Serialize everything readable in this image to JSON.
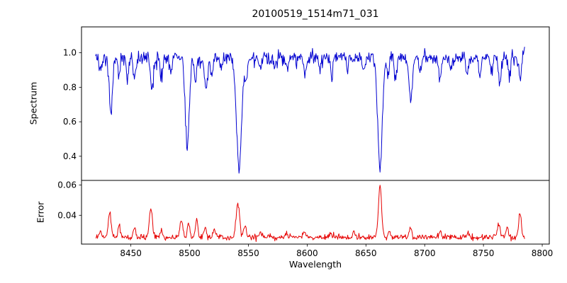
{
  "chart_data": {
    "type": "line",
    "title": "20100519_1514m71_031",
    "xlabel": "Wavelength",
    "xlim": [
      8408,
      8806
    ],
    "xticks": [
      8450,
      8500,
      8550,
      8600,
      8650,
      8700,
      8750,
      8800
    ],
    "x_range": [
      8420,
      8785
    ],
    "x_step": 0.5,
    "grid": false,
    "legend": false,
    "panels": [
      {
        "name": "spectrum",
        "ylabel": "Spectrum",
        "color": "#0000d0",
        "ylim": [
          0.26,
          1.15
        ],
        "yticks": [
          0.4,
          0.6,
          0.8,
          1.0
        ],
        "ytick_decimals": 1,
        "mode": "absorption",
        "base": 0.972,
        "noise_std": 0.021,
        "features": [
          [
            8424,
            0.07,
            1.2
          ],
          [
            8433,
            0.33,
            1.4
          ],
          [
            8440,
            0.1,
            1.0
          ],
          [
            8447,
            0.11,
            1.0
          ],
          [
            8453,
            0.13,
            1.2
          ],
          [
            8468,
            0.18,
            1.4
          ],
          [
            8476,
            0.1,
            1.0
          ],
          [
            8484,
            0.07,
            1.0
          ],
          [
            8498,
            0.51,
            1.7
          ],
          [
            8505,
            0.13,
            1.0
          ],
          [
            8514,
            0.21,
            1.2
          ],
          [
            8519,
            0.1,
            1.0
          ],
          [
            8527,
            0.07,
            1.0
          ],
          [
            8542,
            0.64,
            2.2
          ],
          [
            8548,
            0.12,
            1.0
          ],
          [
            8560,
            0.06,
            1.0
          ],
          [
            8572,
            0.07,
            1.0
          ],
          [
            8583,
            0.08,
            1.0
          ],
          [
            8598,
            0.1,
            1.1
          ],
          [
            8611,
            0.07,
            1.0
          ],
          [
            8621,
            0.1,
            1.0
          ],
          [
            8634,
            0.06,
            1.0
          ],
          [
            8648,
            0.08,
            1.0
          ],
          [
            8662,
            0.64,
            2.0
          ],
          [
            8669,
            0.1,
            1.0
          ],
          [
            8675,
            0.14,
            1.0
          ],
          [
            8688,
            0.26,
            1.4
          ],
          [
            8696,
            0.08,
            1.0
          ],
          [
            8713,
            0.12,
            1.1
          ],
          [
            8722,
            0.07,
            1.0
          ],
          [
            8736,
            0.1,
            1.0
          ],
          [
            8747,
            0.1,
            1.0
          ],
          [
            8757,
            0.08,
            1.0
          ],
          [
            8764,
            0.14,
            1.1
          ],
          [
            8772,
            0.12,
            1.0
          ],
          [
            8781,
            0.12,
            1.0
          ]
        ]
      },
      {
        "name": "error",
        "ylabel": "Error",
        "color": "#e60000",
        "ylim": [
          0.021,
          0.063
        ],
        "yticks": [
          0.04,
          0.06
        ],
        "ytick_decimals": 2,
        "mode": "emission",
        "base": 0.0255,
        "noise_std": 0.0009,
        "features": [
          [
            8424,
            0.004,
            1.0
          ],
          [
            8432,
            0.016,
            1.2
          ],
          [
            8440,
            0.008,
            1.0
          ],
          [
            8453,
            0.007,
            1.0
          ],
          [
            8467,
            0.02,
            1.2
          ],
          [
            8476,
            0.005,
            1.0
          ],
          [
            8493,
            0.011,
            1.2
          ],
          [
            8499,
            0.009,
            1.0
          ],
          [
            8506,
            0.012,
            1.0
          ],
          [
            8513,
            0.007,
            1.0
          ],
          [
            8521,
            0.005,
            1.0
          ],
          [
            8541,
            0.022,
            1.5
          ],
          [
            8547,
            0.008,
            1.0
          ],
          [
            8560,
            0.003,
            1.0
          ],
          [
            8582,
            0.003,
            1.0
          ],
          [
            8598,
            0.004,
            1.0
          ],
          [
            8620,
            0.003,
            1.0
          ],
          [
            8640,
            0.003,
            1.0
          ],
          [
            8662,
            0.034,
            1.3
          ],
          [
            8670,
            0.004,
            1.0
          ],
          [
            8688,
            0.006,
            1.0
          ],
          [
            8713,
            0.004,
            1.0
          ],
          [
            8737,
            0.003,
            1.0
          ],
          [
            8763,
            0.009,
            1.2
          ],
          [
            8770,
            0.007,
            1.0
          ],
          [
            8781,
            0.016,
            1.1
          ]
        ]
      }
    ]
  }
}
